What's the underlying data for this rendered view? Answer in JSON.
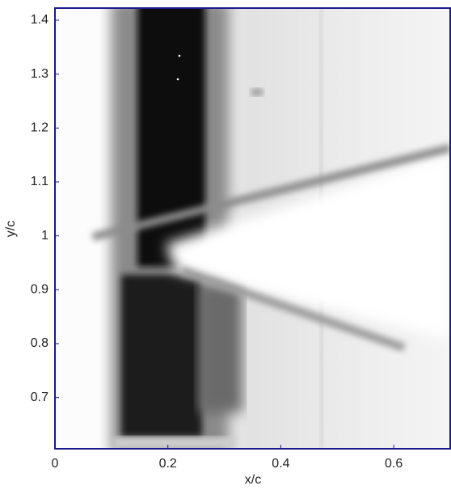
{
  "chart_data": {
    "type": "image",
    "xlabel": "x/c",
    "ylabel": "y/c",
    "xlim": [
      0,
      0.7
    ],
    "ylim": [
      0.605,
      1.4225
    ],
    "xticks": [
      0,
      0.2,
      0.4,
      0.6
    ],
    "yticks": [
      0.7,
      0.8,
      0.9,
      1,
      1.1,
      1.2,
      1.3,
      1.4
    ]
  }
}
